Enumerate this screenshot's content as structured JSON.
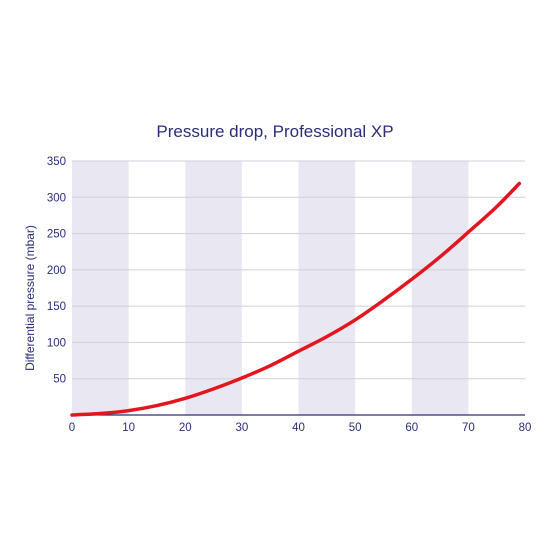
{
  "chart_data": {
    "type": "line",
    "title": "Pressure drop, Professional XP",
    "xlabel": "",
    "ylabel": "Differential pressure (mbar)",
    "xlim": [
      0,
      80
    ],
    "ylim": [
      0,
      350
    ],
    "x_ticks": [
      0,
      10,
      20,
      30,
      40,
      50,
      60,
      70,
      80
    ],
    "y_ticks": [
      50,
      100,
      150,
      200,
      250,
      300,
      350
    ],
    "grid": true,
    "band_color": "#e9e8f2",
    "grid_color": "#cfcfd8",
    "text_color": "#2b2d78",
    "series": [
      {
        "color": "#e3161f",
        "x": [
          0,
          5,
          10,
          15,
          20,
          25,
          30,
          35,
          40,
          45,
          50,
          55,
          60,
          65,
          70,
          75,
          79
        ],
        "y": [
          0,
          2,
          6,
          13,
          23,
          36,
          51,
          68,
          88,
          108,
          131,
          158,
          187,
          218,
          252,
          287,
          319
        ]
      }
    ]
  }
}
